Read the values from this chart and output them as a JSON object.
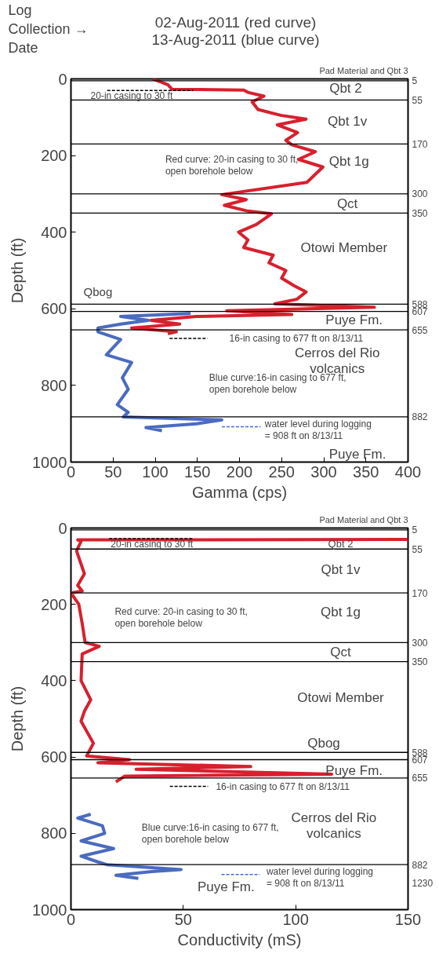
{
  "chart_data": [
    {
      "type": "line",
      "title": "02-Aug-2011 (red curve)\n13-Aug-2011 (blue curve)",
      "xlabel": "Gamma (cps)",
      "ylabel": "Depth (ft)",
      "xlim": [
        0,
        400
      ],
      "ylim": [
        1000,
        0
      ],
      "xticks": [
        0,
        50,
        100,
        150,
        200,
        250,
        300,
        350,
        400
      ],
      "yticks": [
        0,
        200,
        400,
        600,
        800,
        1000
      ],
      "grid": false,
      "marker": "none",
      "line_style": "solid",
      "series": [
        {
          "color": "#d7202e",
          "x": [
            97,
            115,
            120,
            205,
            210,
            229,
            215,
            222,
            249,
            279,
            245,
            269,
            255,
            262,
            290,
            270,
            299,
            280,
            179,
            208,
            182,
            210,
            238,
            220,
            199,
            210,
            205,
            240,
            235,
            255,
            250,
            265,
            279,
            268,
            242,
            360,
            185,
            262,
            149,
            95,
            129,
            72,
            125,
            115
          ],
          "values": [
            0,
            15,
            27,
            29,
            35,
            45,
            60,
            80,
            95,
            105,
            120,
            140,
            160,
            172,
            190,
            210,
            230,
            270,
            302,
            315,
            330,
            345,
            352,
            380,
            400,
            420,
            440,
            460,
            480,
            500,
            520,
            540,
            556,
            575,
            587,
            596,
            605,
            615,
            620,
            630,
            640,
            650,
            660,
            665
          ]
        },
        {
          "color": "#4a6bbf",
          "x": [
            142,
            59,
            92,
            59,
            32,
            32,
            59,
            42,
            72,
            61,
            68,
            55,
            68,
            62,
            179,
            149,
            89,
            108
          ],
          "values": [
            612,
            620,
            630,
            640,
            650,
            660,
            680,
            720,
            740,
            780,
            810,
            850,
            870,
            882,
            890,
            900,
            910,
            918
          ]
        },
        {
          "color": "#000000",
          "line_style": "dashed",
          "x": [
            43,
            145
          ],
          "values": [
            30,
            30
          ]
        },
        {
          "color": "#000000",
          "line_style": "dashed",
          "x": [
            117,
            162
          ],
          "values": [
            677,
            677
          ]
        },
        {
          "color": "#4a6bbf",
          "line_style": "dashed",
          "x": [
            179,
            225
          ],
          "values": [
            908,
            908
          ]
        }
      ],
      "ref_lines": [
        {
          "axis": "y",
          "value": 5,
          "label": "5"
        },
        {
          "axis": "y",
          "value": 55,
          "label": "55"
        },
        {
          "axis": "y",
          "value": 170,
          "label": "170"
        },
        {
          "axis": "y",
          "value": 300,
          "label": "300"
        },
        {
          "axis": "y",
          "value": 350,
          "label": "350"
        },
        {
          "axis": "y",
          "value": 588,
          "label": "588"
        },
        {
          "axis": "y",
          "value": 607,
          "label": "607"
        },
        {
          "axis": "y",
          "value": 655,
          "label": "655"
        },
        {
          "axis": "y",
          "value": 882,
          "label": "882"
        }
      ],
      "annotations": [
        "Log\nCollection →\nDate",
        "Pad Material and Qbt 3",
        "Qbt 2",
        "Qbt 1v",
        "Qbt 1g",
        "Qct",
        "Otowi Member",
        "Qbog",
        "Puye Fm.",
        "Cerros del Rio\nvolcanics",
        "Puye Fm.",
        "20-in casing to 30 ft",
        "Red curve: 20-in casing to 30 ft,\nopen borehole below",
        "16-in casing to 677 ft on 8/13/11",
        "Blue curve:16-in casing to 677 ft,\nopen borehole below",
        "water level during logging\n= 908 ft  on 8/13/11"
      ]
    },
    {
      "type": "line",
      "xlabel": "Conductivity (mS)",
      "ylabel": "Depth (ft)",
      "xlim": [
        0,
        150
      ],
      "ylim": [
        1000,
        0
      ],
      "xticks": [
        0,
        50,
        100,
        150
      ],
      "yticks": [
        0,
        200,
        400,
        600,
        800,
        1000
      ],
      "grid": false,
      "marker": "none",
      "line_style": "solid",
      "series": [
        {
          "color": "#d7202e",
          "x": [
            150,
            3,
            4.5,
            2.5,
            6,
            3,
            5,
            0,
            3.5,
            5,
            6.3,
            12.6,
            5,
            4.5,
            8.8,
            6,
            4.5,
            10,
            7,
            26,
            12,
            80,
            29,
            116,
            24,
            20
          ],
          "values": [
            30,
            31,
            35,
            60,
            120,
            150,
            165,
            170,
            200,
            250,
            300,
            310,
            330,
            400,
            450,
            480,
            506,
            564,
            597,
            607,
            615,
            625,
            632,
            645,
            650,
            665
          ]
        },
        {
          "color": "#4a6bbf",
          "x": [
            8.8,
            3,
            14,
            15,
            4.5,
            19,
            4.5,
            12,
            16,
            49,
            36,
            20,
            30
          ],
          "values": [
            750,
            760,
            780,
            800,
            820,
            840,
            860,
            875,
            882,
            895,
            900,
            910,
            918
          ]
        },
        {
          "color": "#000000",
          "line_style": "dashed",
          "x": [
            17,
            54
          ],
          "values": [
            28,
            28
          ]
        },
        {
          "color": "#000000",
          "line_style": "dashed",
          "x": [
            44,
            61
          ],
          "values": [
            677,
            677
          ]
        },
        {
          "color": "#4a6bbf",
          "line_style": "dashed",
          "x": [
            67,
            84
          ],
          "values": [
            908,
            908
          ]
        }
      ],
      "ref_lines": [
        {
          "axis": "y",
          "value": 5,
          "label": "5"
        },
        {
          "axis": "y",
          "value": 55,
          "label": "55"
        },
        {
          "axis": "y",
          "value": 170,
          "label": "170"
        },
        {
          "axis": "y",
          "value": 300,
          "label": "300"
        },
        {
          "axis": "y",
          "value": 350,
          "label": "350"
        },
        {
          "axis": "y",
          "value": 588,
          "label": "588"
        },
        {
          "axis": "y",
          "value": 607,
          "label": "607"
        },
        {
          "axis": "y",
          "value": 655,
          "label": "655"
        },
        {
          "axis": "y",
          "value": 882,
          "label": "882"
        }
      ],
      "annotations": [
        "1230",
        "Pad Material and Qbt 3",
        "Qbt 2",
        "Qbt 1v",
        "Qbt 1g",
        "Qct",
        "Otowi Member",
        "Qbog",
        "Puye Fm.",
        "Cerros del Rio\nvolcanics",
        "Puye Fm.",
        "20-in casing to 30 ft",
        "Red curve: 20-in casing to 30 ft,\nopen borehole below",
        "16-in casing to 677 ft on 8/13/11",
        "Blue curve:16-in casing to 677 ft,\nopen borehole below",
        "water level during logging\n= 908 ft  on 8/13/11"
      ]
    }
  ]
}
